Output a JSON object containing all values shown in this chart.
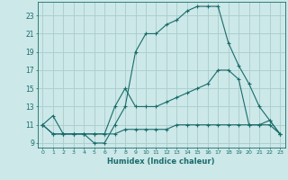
{
  "xlabel": "Humidex (Indice chaleur)",
  "bg_color": "#cce8e8",
  "grid_color": "#aacccc",
  "line_color": "#1a6b6b",
  "x": [
    0,
    1,
    2,
    3,
    4,
    5,
    6,
    7,
    8,
    9,
    10,
    11,
    12,
    13,
    14,
    15,
    16,
    17,
    18,
    19,
    20,
    21,
    22,
    23
  ],
  "ylim": [
    8.5,
    24.5
  ],
  "yticks": [
    9,
    11,
    13,
    15,
    17,
    19,
    21,
    23
  ],
  "xticks": [
    0,
    1,
    2,
    3,
    4,
    5,
    6,
    7,
    8,
    9,
    10,
    11,
    12,
    13,
    14,
    15,
    16,
    17,
    18,
    19,
    20,
    21,
    22,
    23
  ],
  "series1": [
    11,
    12,
    10,
    10,
    10,
    9,
    9,
    11,
    13,
    19,
    21,
    21,
    22,
    22.5,
    23.5,
    24,
    24,
    24,
    20,
    17.5,
    15.5,
    13,
    11.5,
    10
  ],
  "series2": [
    11,
    10,
    10,
    10,
    10,
    10,
    10,
    13,
    15,
    13,
    13,
    13,
    13.5,
    14,
    14.5,
    15,
    15.5,
    17,
    17,
    16,
    11,
    11,
    11.5,
    10
  ],
  "series3": [
    11,
    10,
    10,
    10,
    10,
    10,
    10,
    10,
    10.5,
    10.5,
    10.5,
    10.5,
    10.5,
    11,
    11,
    11,
    11,
    11,
    11,
    11,
    11,
    11,
    11,
    10
  ]
}
